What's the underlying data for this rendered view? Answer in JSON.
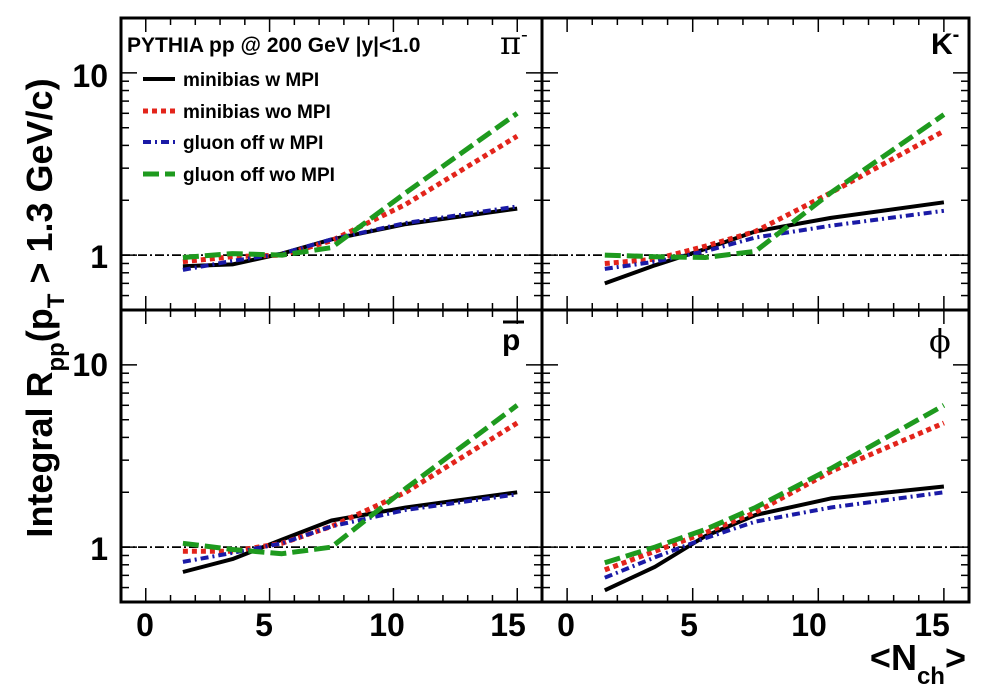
{
  "chart_data": {
    "type": "line",
    "header": {
      "text": "PYTHIA pp @ 200 GeV |y|<1.0"
    },
    "ylabel": {
      "main": "Integral R",
      "sub": "pp",
      "paren_open": "(p",
      "pt_sub": "T",
      "rest": " > 1.3 GeV/c)"
    },
    "xlabel": {
      "open": "<N",
      "sub": "ch",
      "close": ">"
    },
    "xlim": [
      -1,
      16
    ],
    "ylim": [
      0.5,
      20
    ],
    "yscale": "log",
    "x_ticks": [
      "0",
      "5",
      "10",
      "15"
    ],
    "y_ticks": [
      "1",
      "10"
    ],
    "reference_line": 1,
    "colors": {
      "minibias_w_mpi": "#000000",
      "minibias_wo_mpi": "#e3241b",
      "gluon_off_w_mpi": "#1a1aa6",
      "gluon_off_wo_mpi": "#1e9a1e"
    },
    "legend": [
      {
        "key": "minibias_w_mpi",
        "label": "minibias w MPI"
      },
      {
        "key": "minibias_wo_mpi",
        "label": "minibias wo MPI"
      },
      {
        "key": "gluon_off_w_mpi",
        "label": "gluon off w MPI"
      },
      {
        "key": "gluon_off_wo_mpi",
        "label": "gluon off wo MPI"
      }
    ],
    "panels": [
      {
        "particle": "pion_minus",
        "label": "π",
        "label_sup": "-",
        "series": [
          {
            "key": "minibias_w_mpi",
            "name": "minibias w MPI",
            "x": [
              1.5,
              3.5,
              5.5,
              7.5,
              10.5,
              15
            ],
            "y": [
              0.87,
              0.89,
              1.02,
              1.22,
              1.48,
              1.8
            ]
          },
          {
            "key": "minibias_wo_mpi",
            "name": "minibias wo MPI",
            "x": [
              1.5,
              3.5,
              5.5,
              7.5,
              10.5,
              15
            ],
            "y": [
              0.92,
              0.98,
              1.0,
              1.2,
              1.9,
              4.5
            ]
          },
          {
            "key": "gluon_off_w_mpi",
            "name": "gluon off w MPI",
            "x": [
              1.5,
              3.5,
              5.5,
              7.5,
              10.5,
              15
            ],
            "y": [
              0.83,
              0.93,
              1.02,
              1.22,
              1.5,
              1.85
            ]
          },
          {
            "key": "gluon_off_wo_mpi",
            "name": "gluon off wo MPI",
            "x": [
              1.5,
              3.5,
              5.5,
              7.5,
              10.5,
              15
            ],
            "y": [
              0.97,
              1.02,
              1.0,
              1.1,
              2.2,
              6.0
            ]
          }
        ]
      },
      {
        "particle": "kaon_minus",
        "label": "K",
        "label_sup": "-",
        "series": [
          {
            "key": "minibias_w_mpi",
            "name": "minibias w MPI",
            "x": [
              1.5,
              3.5,
              5.5,
              7.5,
              10.5,
              15
            ],
            "y": [
              0.7,
              0.88,
              1.08,
              1.35,
              1.6,
              1.95
            ]
          },
          {
            "key": "minibias_wo_mpi",
            "name": "minibias wo MPI",
            "x": [
              1.5,
              3.5,
              5.5,
              7.5,
              10.5,
              15
            ],
            "y": [
              0.9,
              0.95,
              1.12,
              1.35,
              2.2,
              4.8
            ]
          },
          {
            "key": "gluon_off_w_mpi",
            "name": "gluon off w MPI",
            "x": [
              1.5,
              3.5,
              5.5,
              7.5,
              10.5,
              15
            ],
            "y": [
              0.84,
              0.92,
              1.05,
              1.25,
              1.45,
              1.75
            ]
          },
          {
            "key": "gluon_off_wo_mpi",
            "name": "gluon off wo MPI",
            "x": [
              1.5,
              3.5,
              5.5,
              7.5,
              10.5,
              15
            ],
            "y": [
              1.0,
              0.98,
              0.97,
              1.05,
              2.2,
              5.9
            ]
          }
        ]
      },
      {
        "particle": "antiproton",
        "label": "p",
        "label_sup": "",
        "series": [
          {
            "key": "minibias_w_mpi",
            "name": "minibias w MPI",
            "x": [
              1.5,
              3.5,
              5.5,
              7.5,
              10.5,
              15
            ],
            "y": [
              0.73,
              0.86,
              1.1,
              1.4,
              1.65,
              2.0
            ]
          },
          {
            "key": "minibias_wo_mpi",
            "name": "minibias wo MPI",
            "x": [
              1.5,
              3.5,
              5.5,
              7.5,
              10.5,
              15
            ],
            "y": [
              0.95,
              0.95,
              1.05,
              1.3,
              2.0,
              4.8
            ]
          },
          {
            "key": "gluon_off_w_mpi",
            "name": "gluon off w MPI",
            "x": [
              1.5,
              3.5,
              5.5,
              7.5,
              10.5,
              15
            ],
            "y": [
              0.83,
              0.93,
              1.05,
              1.3,
              1.6,
              1.95
            ]
          },
          {
            "key": "gluon_off_wo_mpi",
            "name": "gluon off wo MPI",
            "x": [
              1.5,
              3.5,
              5.5,
              7.5,
              10.5,
              15
            ],
            "y": [
              1.05,
              0.97,
              0.92,
              1.0,
              2.1,
              6.0
            ]
          }
        ]
      },
      {
        "particle": "phi",
        "label": "ϕ",
        "label_sup": "",
        "series": [
          {
            "key": "minibias_w_mpi",
            "name": "minibias w MPI",
            "x": [
              1.5,
              3.5,
              5.5,
              7.5,
              10.5,
              15
            ],
            "y": [
              0.58,
              0.78,
              1.15,
              1.5,
              1.85,
              2.15
            ]
          },
          {
            "key": "minibias_wo_mpi",
            "name": "minibias wo MPI",
            "x": [
              1.5,
              3.5,
              5.5,
              7.5,
              10.5,
              15
            ],
            "y": [
              0.75,
              0.95,
              1.2,
              1.55,
              2.6,
              4.8
            ]
          },
          {
            "key": "gluon_off_w_mpi",
            "name": "gluon off w MPI",
            "x": [
              1.5,
              3.5,
              5.5,
              7.5,
              10.5,
              15
            ],
            "y": [
              0.68,
              0.88,
              1.12,
              1.38,
              1.65,
              2.0
            ]
          },
          {
            "key": "gluon_off_wo_mpi",
            "name": "gluon off wo MPI",
            "x": [
              1.5,
              3.5,
              5.5,
              7.5,
              10.5,
              15
            ],
            "y": [
              0.82,
              1.0,
              1.25,
              1.65,
              2.7,
              6.0
            ]
          }
        ]
      }
    ]
  }
}
